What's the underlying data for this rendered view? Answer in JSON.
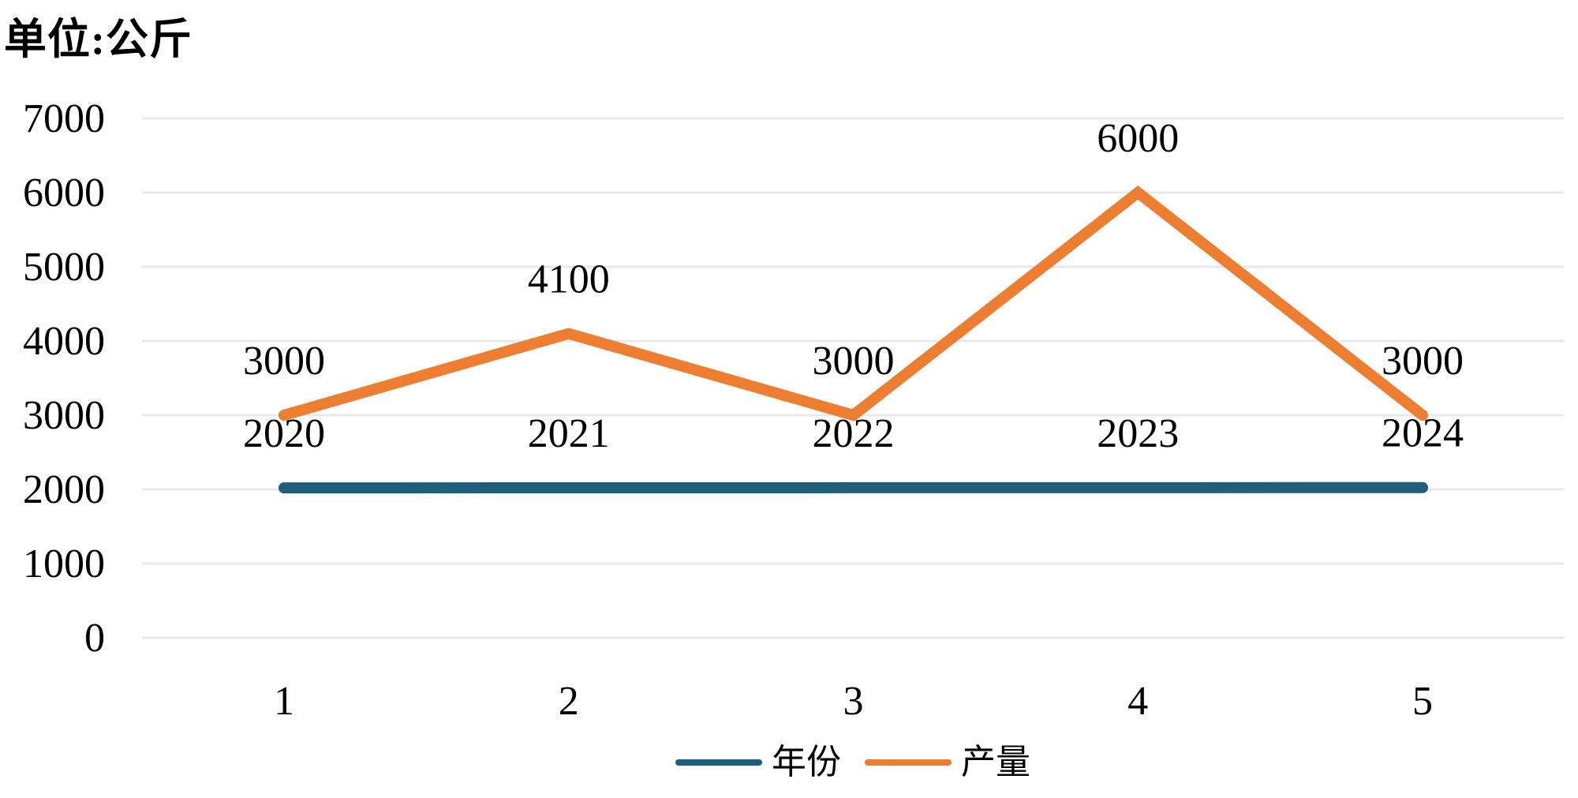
{
  "title": {
    "unit_label": "单位:公斤"
  },
  "colors": {
    "year_series": "#1F5D7D",
    "yield_series": "#ED7D31",
    "gridline": "#E8E8E8",
    "text": "#000000",
    "background": "#FFFFFF"
  },
  "chart_data": {
    "type": "line",
    "title": "单位:公斤",
    "categories": [
      "1",
      "2",
      "3",
      "4",
      "5"
    ],
    "series": [
      {
        "id": "year",
        "name": "年份",
        "values": [
          2020,
          2021,
          2022,
          2023,
          2024
        ],
        "data_labels": [
          "2020",
          "2021",
          "2022",
          "2023",
          "2024"
        ],
        "color": "#1F5D7D"
      },
      {
        "id": "yield",
        "name": "产量",
        "values": [
          3000,
          4100,
          3000,
          6000,
          3000
        ],
        "data_labels": [
          "3000",
          "4100",
          "3000",
          "6000",
          "3000"
        ],
        "color": "#ED7D31"
      }
    ],
    "xlabel": "",
    "ylabel": "",
    "ylim": [
      0,
      7000
    ],
    "ytick_step": 1000,
    "yticks": [
      0,
      1000,
      2000,
      3000,
      4000,
      5000,
      6000,
      7000
    ],
    "grid": true,
    "data_labels_shown": true,
    "legend_position": "bottom"
  },
  "legend": {
    "items": [
      {
        "id": "year",
        "label": "年份",
        "color": "#1F5D7D"
      },
      {
        "id": "yield",
        "label": "产量",
        "color": "#ED7D31"
      }
    ]
  }
}
